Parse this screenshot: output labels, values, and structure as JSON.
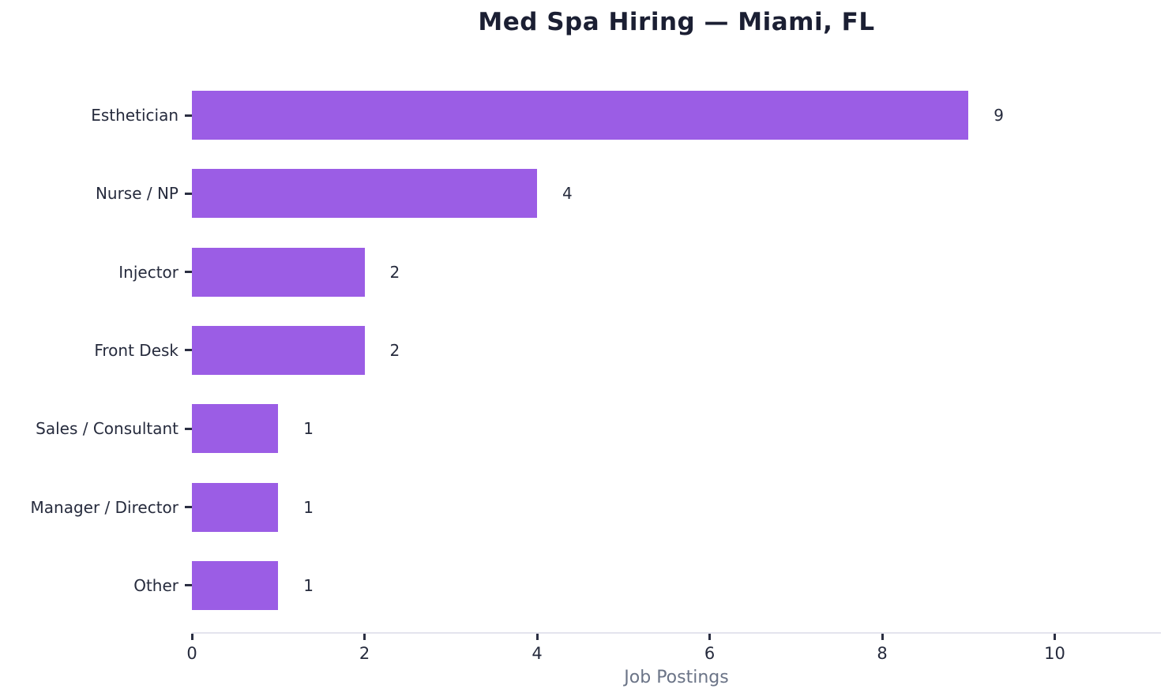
{
  "title": "Med Spa Hiring — Miami, FL",
  "chart_data": {
    "type": "bar",
    "orientation": "horizontal",
    "title": "Med Spa Hiring — Miami, FL",
    "xlabel": "Job Postings",
    "ylabel": "",
    "categories": [
      "Esthetician",
      "Nurse / NP",
      "Injector",
      "Front Desk",
      "Sales / Consultant",
      "Manager / Director",
      "Other"
    ],
    "values": [
      9,
      4,
      2,
      2,
      1,
      1,
      1
    ],
    "value_labels": [
      "9",
      "4",
      "2",
      "2",
      "1",
      "1",
      "1"
    ],
    "xticks": [
      0,
      2,
      4,
      6,
      8,
      10
    ],
    "xlim": [
      0,
      11.23
    ],
    "grid": false,
    "legend": null
  },
  "colors": {
    "bar": "#9b5de5",
    "title_text": "#1b1f33",
    "tick_text": "#262b3d",
    "tick_mark": "#2b2f42",
    "xlabel_text": "#6b7487",
    "axis_line": "#e4e4ee",
    "background": "#ffffff"
  }
}
